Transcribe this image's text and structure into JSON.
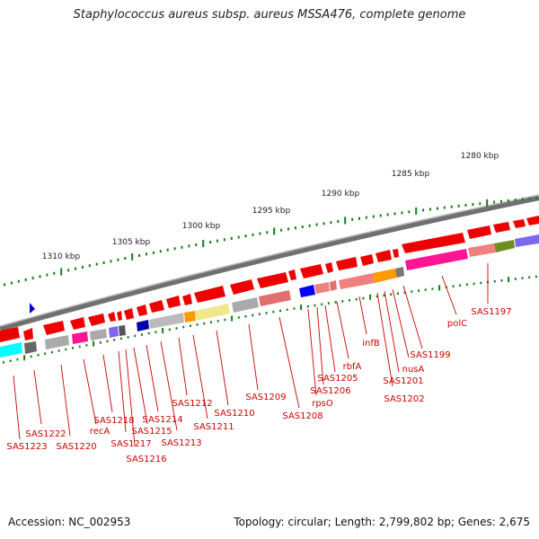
{
  "title": "Staphylococcus aureus subsp. aureus MSSA476, complete genome",
  "footer": {
    "accession": "Accession: NC_002953",
    "summary": "Topology: circular; Length: 2,799,802 bp; Genes: 2,675"
  },
  "scale_labels": [
    "1280 kbp",
    "1285 kbp",
    "1290 kbp",
    "1295 kbp",
    "1300 kbp",
    "1305 kbp",
    "1310 kbp"
  ],
  "gene_labels": [
    "SAS1197",
    "polC",
    "SAS1199",
    "nusA",
    "SAS1201",
    "SAS1202",
    "infB",
    "rbfA",
    "SAS1205",
    "SAS1206",
    "rpsO",
    "SAS1208",
    "SAS1209",
    "SAS1210",
    "SAS1211",
    "SAS1212",
    "SAS1213",
    "SAS1214",
    "SAS1215",
    "SAS1216",
    "SAS1217",
    "SAS1218",
    "recA",
    "SAS1220",
    "SAS1222",
    "SAS1223"
  ],
  "colors": {
    "gene": "#ff0000",
    "label": "#cc0000",
    "tick": "#1a7a1a",
    "backbone": "#888888"
  }
}
